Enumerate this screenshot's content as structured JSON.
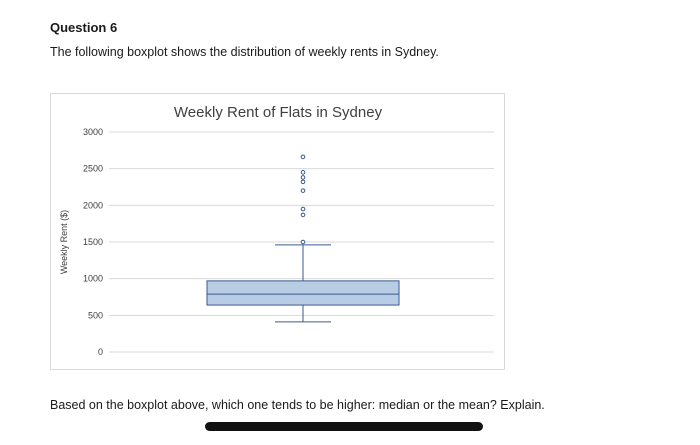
{
  "question": {
    "title": "Question 6",
    "intro": "The following boxplot shows the distribution of weekly rents in Sydney.",
    "prompt": "Based on the boxplot above, which one tends to be higher: median or the mean? Explain."
  },
  "chart_data": {
    "type": "boxplot",
    "title": "Weekly Rent of Flats in Sydney",
    "xlabel": "",
    "ylabel": "Weekly Rent ($)",
    "ylim": [
      0,
      3000
    ],
    "yticks": [
      0,
      500,
      1000,
      1500,
      2000,
      2500,
      3000
    ],
    "grid": true,
    "box": {
      "whisker_low": 410,
      "q1": 640,
      "median": 790,
      "q3": 970,
      "whisker_high": 1460,
      "outliers": [
        1500,
        1870,
        1950,
        2200,
        2320,
        2380,
        2450,
        2660
      ]
    },
    "colors": {
      "box_fill": "#b8cce4",
      "box_stroke": "#3a5a8c",
      "grid": "#d9d9d9"
    }
  }
}
